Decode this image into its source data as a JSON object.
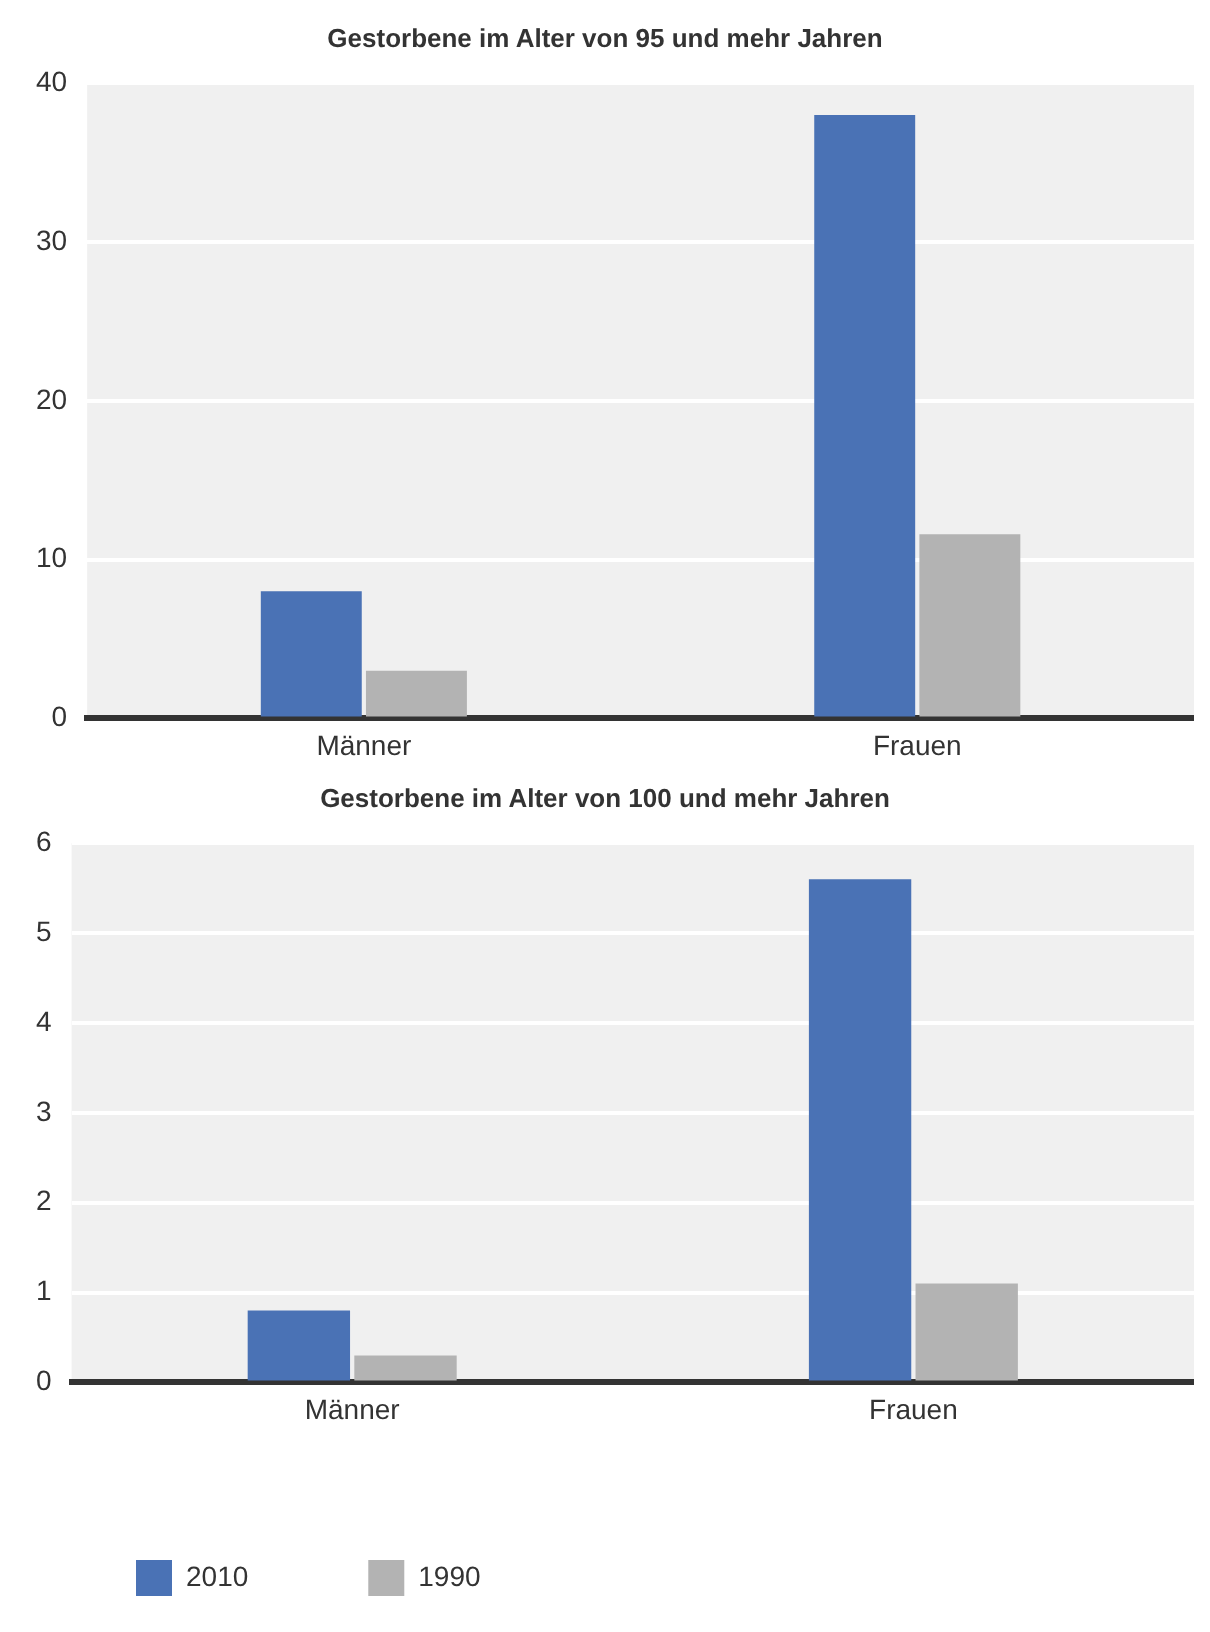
{
  "chart_data": [
    {
      "type": "bar",
      "title": "Gestorbene im Alter von 95 und mehr Jahren",
      "categories": [
        "Männer",
        "Frauen"
      ],
      "series": [
        {
          "color": "#4a72b5",
          "values": [
            8,
            38
          ]
        },
        {
          "color": "#b3b3b3",
          "values": [
            3,
            11.6
          ]
        }
      ],
      "ylim": [
        0,
        40
      ],
      "yticks": [
        0,
        10,
        20,
        30,
        40
      ],
      "grid": "y",
      "legend": false
    },
    {
      "type": "bar",
      "title": "Gestorbene im Alter von 100 und mehr Jahren",
      "categories": [
        "Männer",
        "Frauen"
      ],
      "series": [
        {
          "name": "2010",
          "color": "#4a72b5",
          "values": [
            0.8,
            5.6
          ]
        },
        {
          "name": "1990",
          "color": "#b3b3b3",
          "values": [
            0.3,
            1.1
          ]
        }
      ],
      "ylim": [
        0,
        6
      ],
      "yticks": [
        0,
        1,
        2,
        3,
        4,
        5,
        6
      ],
      "grid": "y",
      "legend": "bottom left"
    }
  ]
}
